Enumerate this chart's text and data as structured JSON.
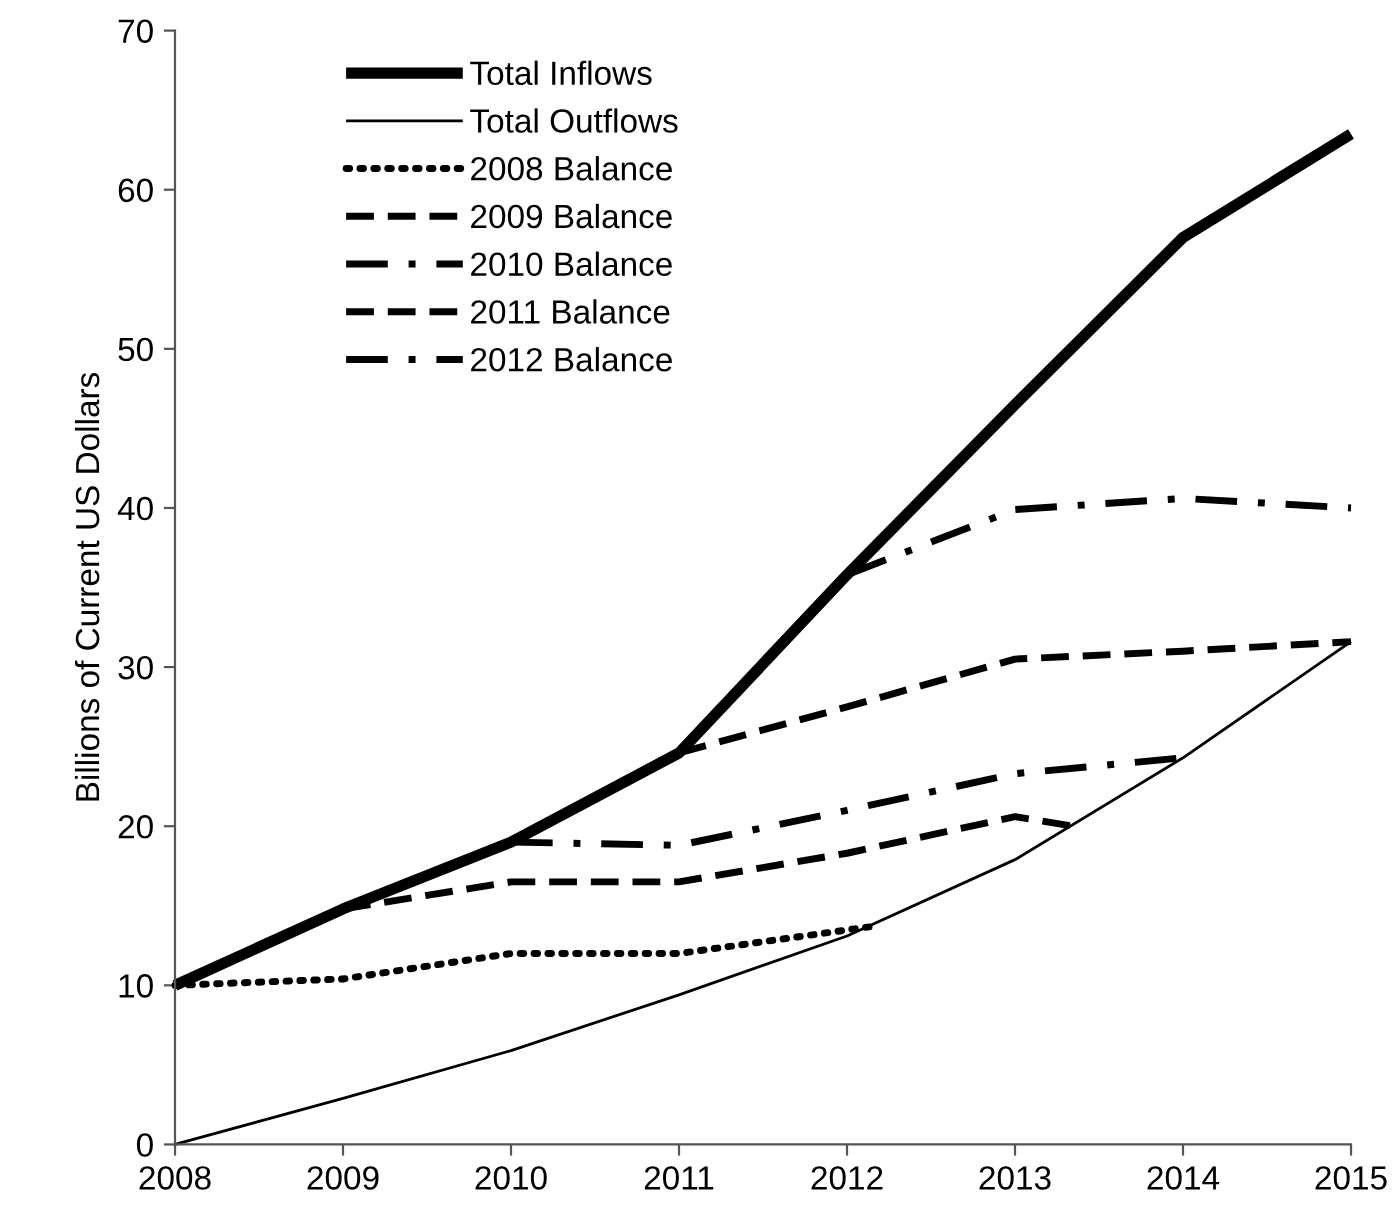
{
  "chart_data": {
    "type": "line",
    "ylabel": "Billions of Current US Dollars",
    "xlim": [
      2008,
      2015
    ],
    "ylim": [
      0,
      70
    ],
    "xticks": [
      2008,
      2009,
      2010,
      2011,
      2012,
      2013,
      2014,
      2015
    ],
    "yticks": [
      0,
      10,
      20,
      30,
      40,
      50,
      60,
      70
    ],
    "grid": false,
    "legend": "top left",
    "marker": "none",
    "series": [
      {
        "name": "Total Inflows",
        "color": "#000000",
        "line_style": "solid",
        "x": [
          2008,
          2009,
          2010,
          2011,
          2012,
          2013,
          2014,
          2015
        ],
        "values": [
          10,
          14.8,
          19.0,
          24.6,
          35.8,
          46.5,
          57,
          63.5
        ]
      },
      {
        "name": "Total Outflows",
        "color": "#000000",
        "line_style": "solid",
        "x": [
          2008,
          2009,
          2010,
          2011,
          2012,
          2013,
          2014,
          2015
        ],
        "values": [
          0,
          2.9,
          5.9,
          9.4,
          13.1,
          17.9,
          24.3,
          31.6
        ]
      },
      {
        "name": "2008 Balance",
        "color": "#000000",
        "line_style": "dotted",
        "x": [
          2008,
          2009,
          2010,
          2011,
          2012.15
        ],
        "values": [
          10,
          10.4,
          12,
          12,
          13.7
        ]
      },
      {
        "name": "2009 Balance",
        "color": "#000000",
        "line_style": "dashed",
        "x": [
          2009,
          2010,
          2011,
          2012,
          2013,
          2013.35
        ],
        "values": [
          14.8,
          16.5,
          16.5,
          18.3,
          20.6,
          20.0
        ]
      },
      {
        "name": "2010 Balance",
        "color": "#000000",
        "line_style": "dashdot",
        "x": [
          2010,
          2011,
          2012,
          2013,
          2014
        ],
        "values": [
          19.0,
          18.8,
          21.0,
          23.3,
          24.3
        ]
      },
      {
        "name": "2011 Balance",
        "color": "#000000",
        "line_style": "dashed",
        "x": [
          2011,
          2012,
          2013,
          2014,
          2015
        ],
        "values": [
          24.6,
          27.5,
          30.5,
          31.0,
          31.6
        ]
      },
      {
        "name": "2012 Balance",
        "color": "#000000",
        "line_style": "dashdot",
        "x": [
          2012,
          2013,
          2014,
          2015
        ],
        "values": [
          35.8,
          39.9,
          40.6,
          40.0
        ]
      }
    ]
  }
}
